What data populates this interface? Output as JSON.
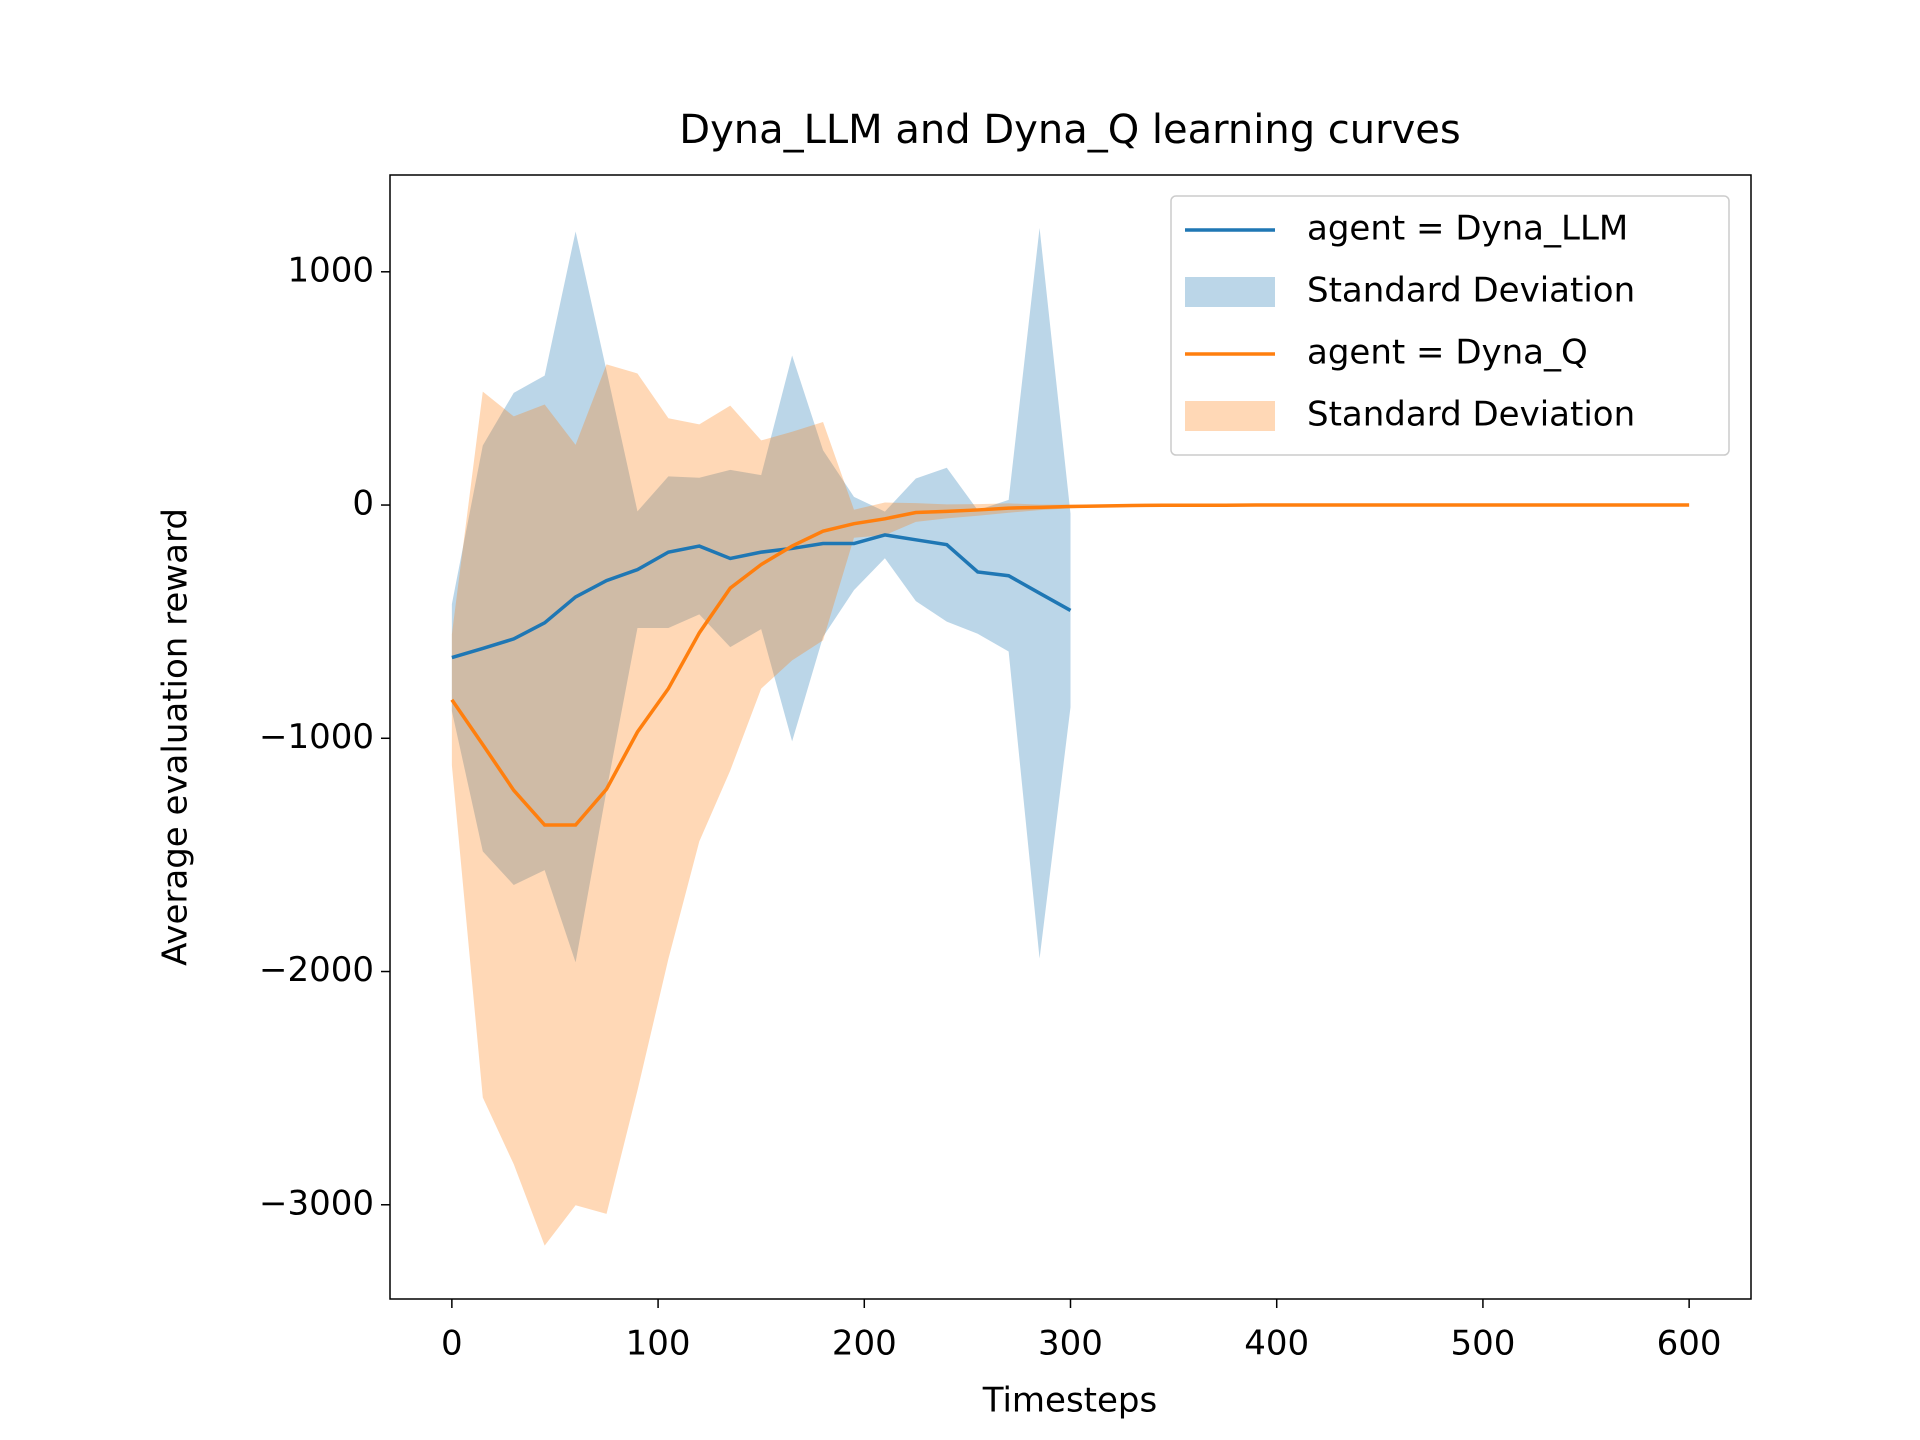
{
  "chart_data": {
    "type": "line",
    "title": "Dyna_LLM and Dyna_Q learning curves",
    "xlabel": "Timesteps",
    "ylabel": "Average evaluation reward",
    "xlim": [
      -30,
      630
    ],
    "ylim": [
      -3404,
      1415
    ],
    "xticks": [
      0,
      100,
      200,
      300,
      400,
      500,
      600
    ],
    "yticks": [
      {
        "value": -3000,
        "label": "−3000"
      },
      {
        "value": -2000,
        "label": "−2000"
      },
      {
        "value": -1000,
        "label": "−1000"
      },
      0,
      1000
    ],
    "legend": "upper right",
    "series": [
      {
        "name": "agent = Dyna_LLM",
        "band_name": "Standard Deviation",
        "color": "#1f77b4",
        "x": [
          0,
          15,
          30,
          45,
          60,
          75,
          90,
          105,
          120,
          135,
          150,
          165,
          180,
          195,
          210,
          225,
          240,
          255,
          270,
          285,
          300
        ],
        "values": [
          -654,
          -615,
          -574,
          -505,
          -394,
          -324,
          -277,
          -202,
          -176,
          -229,
          -202,
          -186,
          -165,
          -165,
          -128,
          -149,
          -170,
          -287,
          -303,
          -378,
          -452
        ],
        "std": [
          229,
          870,
          1055,
          1060,
          1567,
          900,
          250,
          325,
          293,
          380,
          330,
          827,
          400,
          200,
          100,
          263,
          330,
          265,
          325,
          1566,
          415
        ]
      },
      {
        "name": "agent = Dyna_Q",
        "band_name": "Standard Deviation",
        "color": "#ff7f0e",
        "x": [
          0,
          15,
          30,
          45,
          60,
          75,
          90,
          105,
          120,
          135,
          150,
          165,
          180,
          195,
          210,
          225,
          240,
          255,
          270,
          285,
          300,
          315,
          330,
          345,
          360,
          375,
          390,
          405,
          420,
          435,
          450,
          465,
          480,
          495,
          510,
          525,
          540,
          555,
          570,
          585,
          600
        ],
        "values": [
          -835,
          -1027,
          -1223,
          -1372,
          -1372,
          -1218,
          -973,
          -787,
          -548,
          -356,
          -255,
          -176,
          -112,
          -80,
          -59,
          -32,
          -27,
          -21,
          -13,
          -10,
          -6,
          -4,
          -2,
          -1,
          -1,
          -1,
          0,
          0,
          0,
          0,
          0,
          0,
          0,
          0,
          0,
          0,
          0,
          0,
          0,
          0,
          0
        ],
        "std": [
          280,
          1513,
          1603,
          1803,
          1630,
          1821,
          1537,
          1159,
          894,
          782,
          532,
          490,
          468,
          60,
          70,
          40,
          30,
          25,
          20,
          12,
          8,
          5,
          3,
          2,
          1,
          1,
          0,
          0,
          0,
          0,
          0,
          0,
          0,
          0,
          0,
          0,
          0,
          0,
          0,
          0,
          0
        ]
      }
    ]
  }
}
